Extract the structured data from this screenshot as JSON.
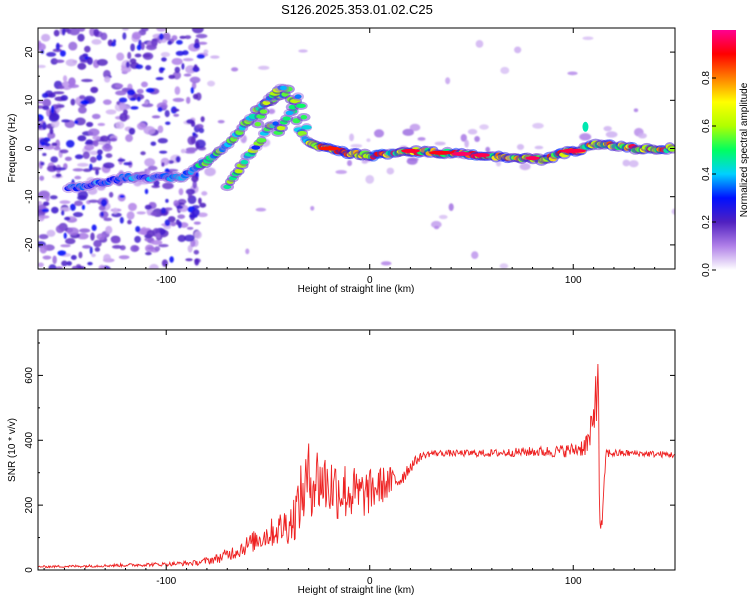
{
  "title": "S126.2025.353.01.02.C25",
  "chart_data": [
    {
      "type": "heatmap",
      "name": "spectrogram",
      "xlabel": "Height of straight line (km)",
      "ylabel": "Frequency (Hz)",
      "xlim": [
        -163,
        150
      ],
      "ylim": [
        -25,
        25
      ],
      "xticks": [
        -100,
        0,
        100
      ],
      "xtick_labels": [
        "-100",
        "0",
        "100"
      ],
      "yticks": [
        -20,
        -10,
        0,
        10,
        20
      ],
      "ytick_labels": [
        "-20",
        "-10",
        "0",
        "10",
        "20"
      ],
      "ridge": {
        "x": [
          -140,
          -120,
          -100,
          -92,
          -85,
          -75,
          -65,
          -55,
          -48,
          -40,
          -35,
          -30,
          -20,
          -10,
          0,
          20,
          40,
          60,
          80,
          85,
          95,
          105,
          110,
          130,
          150
        ],
        "y": [
          -8,
          -6,
          -6,
          -6,
          -4,
          -1,
          3,
          8,
          10,
          12,
          4,
          1,
          0,
          -1,
          -1.5,
          -0.5,
          -1,
          -1.5,
          -2,
          -2.5,
          -1,
          0,
          1,
          0,
          0
        ]
      },
      "branches": [
        {
          "x": [
            -70,
            -62,
            -55,
            -50,
            -45
          ],
          "y": [
            -8,
            -3,
            1,
            4,
            6
          ]
        },
        {
          "x": [
            -45,
            -40,
            -35,
            -30
          ],
          "y": [
            3,
            7,
            11,
            3
          ]
        },
        {
          "x": [
            -55,
            -50,
            -45,
            -42
          ],
          "y": [
            5,
            10,
            12,
            13
          ]
        }
      ],
      "noise_region_km": [
        -163,
        -82
      ],
      "colorbar": {
        "label": "Normalized spectral amplitude",
        "range": [
          0,
          1
        ],
        "ticks": [
          0.0,
          0.2,
          0.4,
          0.6,
          0.8
        ],
        "tick_labels": [
          "0.0",
          "0.2",
          "0.4",
          "0.6",
          "0.8"
        ],
        "colors": [
          "#ffffff",
          "#b080e8",
          "#5020c0",
          "#0010ff",
          "#00d0ff",
          "#00ff60",
          "#b0ff00",
          "#ffff00",
          "#ff8000",
          "#ff0000",
          "#ff0090"
        ]
      }
    },
    {
      "type": "line",
      "name": "snr",
      "xlabel": "Height of straight line (km)",
      "ylabel": "SNR (10 * v/v)",
      "xlim": [
        -163,
        150
      ],
      "ylim": [
        0,
        740
      ],
      "xticks": [
        -100,
        0,
        100
      ],
      "xtick_labels": [
        "-100",
        "0",
        "100"
      ],
      "yticks": [
        0,
        200,
        400,
        600
      ],
      "ytick_labels": [
        "0",
        "200",
        "400",
        "600"
      ],
      "color": "#ee2222",
      "series": [
        {
          "name": "SNR",
          "x": [
            -163,
            -140,
            -120,
            -100,
            -85,
            -75,
            -65,
            -55,
            -45,
            -38,
            -34,
            -30,
            -25,
            -20,
            -15,
            -10,
            -5,
            0,
            5,
            10,
            15,
            20,
            25,
            30,
            40,
            60,
            80,
            90,
            100,
            105,
            108,
            110,
            111,
            112,
            113,
            114,
            116,
            120,
            130,
            150
          ],
          "y": [
            10,
            12,
            15,
            18,
            22,
            35,
            60,
            95,
            125,
            150,
            220,
            280,
            280,
            260,
            250,
            240,
            230,
            240,
            260,
            270,
            280,
            320,
            350,
            360,
            360,
            360,
            365,
            365,
            370,
            380,
            400,
            450,
            580,
            600,
            200,
            110,
            360,
            360,
            360,
            355
          ],
          "noise_amplitude": [
            3,
            4,
            5,
            6,
            8,
            15,
            25,
            35,
            50,
            70,
            100,
            120,
            110,
            100,
            100,
            90,
            80,
            70,
            60,
            50,
            30,
            20,
            12,
            10,
            10,
            12,
            15,
            18,
            22,
            30,
            50,
            80,
            120,
            150,
            100,
            30,
            15,
            12,
            10,
            10
          ]
        }
      ]
    }
  ]
}
